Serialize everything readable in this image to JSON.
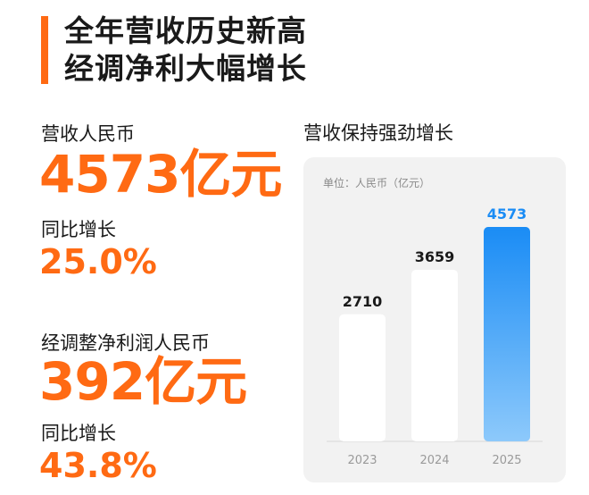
{
  "headline": {
    "line1": "全年营收历史新高",
    "line2": "经调净利大幅增长"
  },
  "revenue": {
    "label": "营收人民币",
    "value": "4573亿元",
    "yoy_label": "同比增长",
    "yoy_value": "25.0%"
  },
  "net_profit": {
    "label": "经调整净利润人民币",
    "value": "392亿元",
    "yoy_label": "同比增长",
    "yoy_value": "43.8%"
  },
  "colors": {
    "accent": "#ff6a13",
    "bar_white": "#ffffff",
    "bar_blue_top": "#1a8cf5",
    "bar_blue_bottom": "#8dc9fb",
    "highlight_label": "#1a8cf5"
  },
  "chart_data": {
    "type": "bar",
    "title": "营收保持强劲增长",
    "unit": "单位：人民币（亿元）",
    "categories": [
      "2023",
      "2024",
      "2025"
    ],
    "values": [
      2710,
      3659,
      4573
    ],
    "value_labels": [
      "2710",
      "3659",
      "4573"
    ],
    "highlight_index": 2,
    "ylim": [
      0,
      4573
    ],
    "grid": false,
    "legend": "none"
  }
}
